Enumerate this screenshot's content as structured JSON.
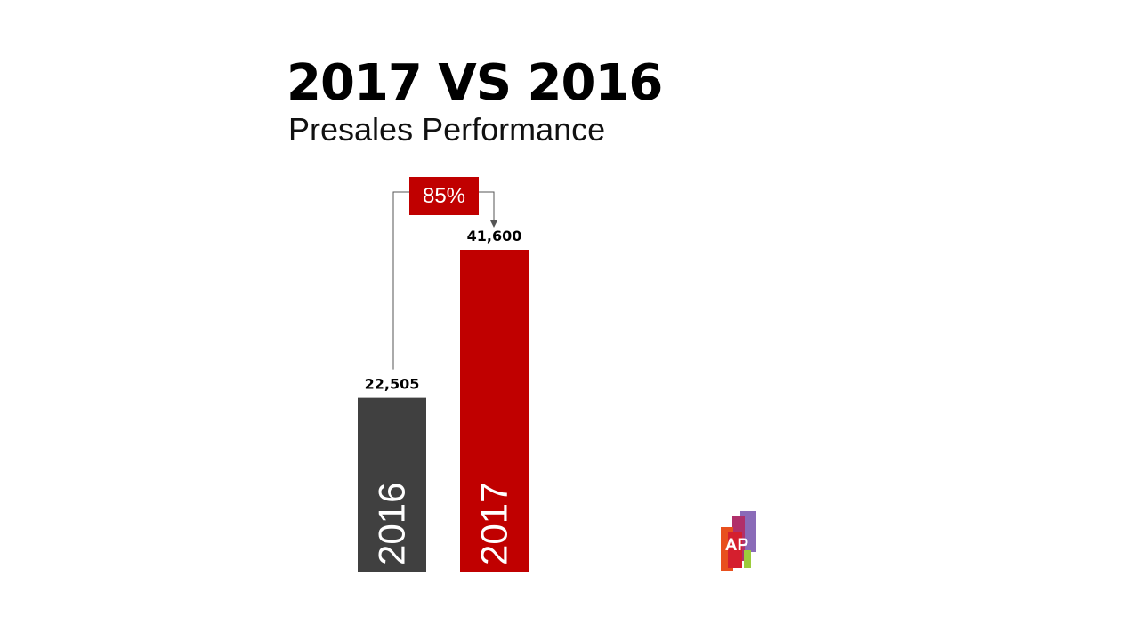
{
  "title": "2017 VS 2016",
  "subtitle": "Presales Performance",
  "growth_label": "85%",
  "logo_text": "AP",
  "colors": {
    "bar_2016": "#404040",
    "bar_2017": "#c00000",
    "accent": "#c00000",
    "text": "#000000"
  },
  "chart_data": {
    "type": "bar",
    "title": "2017 VS 2016",
    "subtitle": "Presales Performance",
    "categories": [
      "2016",
      "2017"
    ],
    "values": [
      22505,
      41600
    ],
    "value_labels": [
      "22,505",
      "41,600"
    ],
    "bar_colors": [
      "#404040",
      "#c00000"
    ],
    "annotation": {
      "text": "85%",
      "from": "2016",
      "to": "2017"
    },
    "grid": false,
    "legend": "none",
    "axes_visible": false
  }
}
